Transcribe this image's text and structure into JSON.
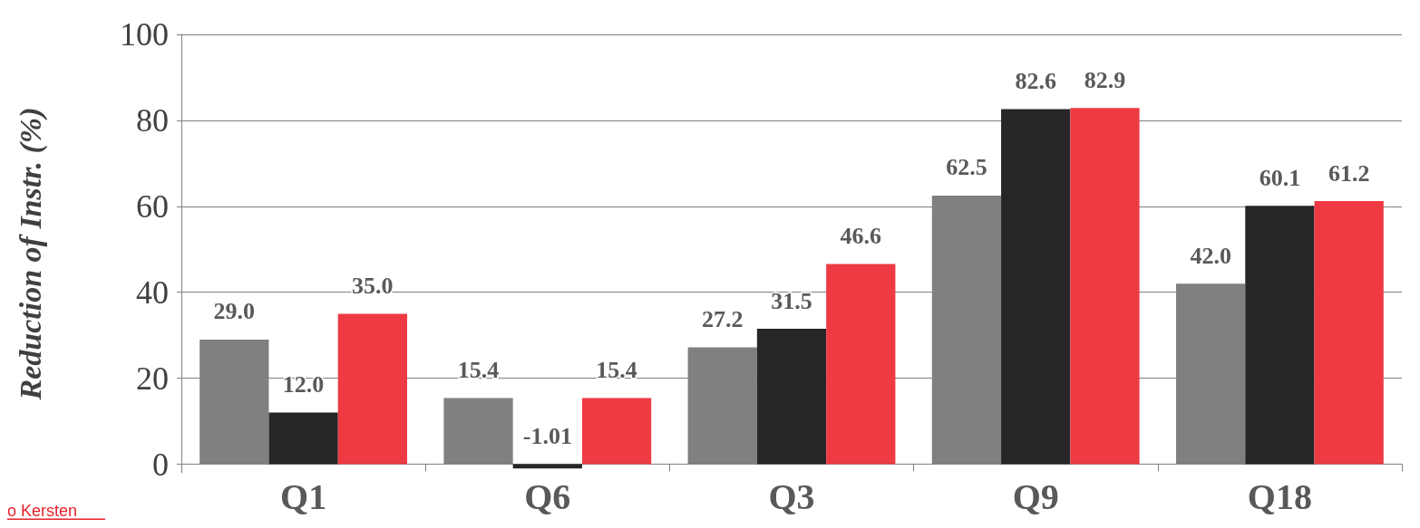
{
  "chart_data": {
    "type": "bar",
    "ylabel": "Reduction of Instr. (%)",
    "categories": [
      "Q1",
      "Q6",
      "Q3",
      "Q9",
      "Q18"
    ],
    "series": [
      {
        "color": "#808080",
        "values": [
          29.0,
          15.4,
          27.2,
          62.5,
          42.0
        ],
        "value_labels": [
          "29.0",
          "15.4",
          "27.2",
          "62.5",
          "42.0"
        ]
      },
      {
        "color": "#262626",
        "values": [
          12.0,
          -1.01,
          31.5,
          82.6,
          60.1
        ],
        "value_labels": [
          "12.0",
          "-1.01",
          "31.5",
          "82.6",
          "60.1"
        ]
      },
      {
        "color": "#ee3a43",
        "values": [
          35.0,
          15.4,
          46.6,
          82.9,
          61.2
        ],
        "value_labels": [
          "35.0",
          "15.4",
          "46.6",
          "82.9",
          "61.2"
        ]
      }
    ],
    "ylim": [
      -2,
      100
    ],
    "yticks": [
      0,
      20,
      40,
      60,
      80,
      100
    ],
    "grid": "y",
    "annotations": [
      "o Kersten"
    ]
  }
}
